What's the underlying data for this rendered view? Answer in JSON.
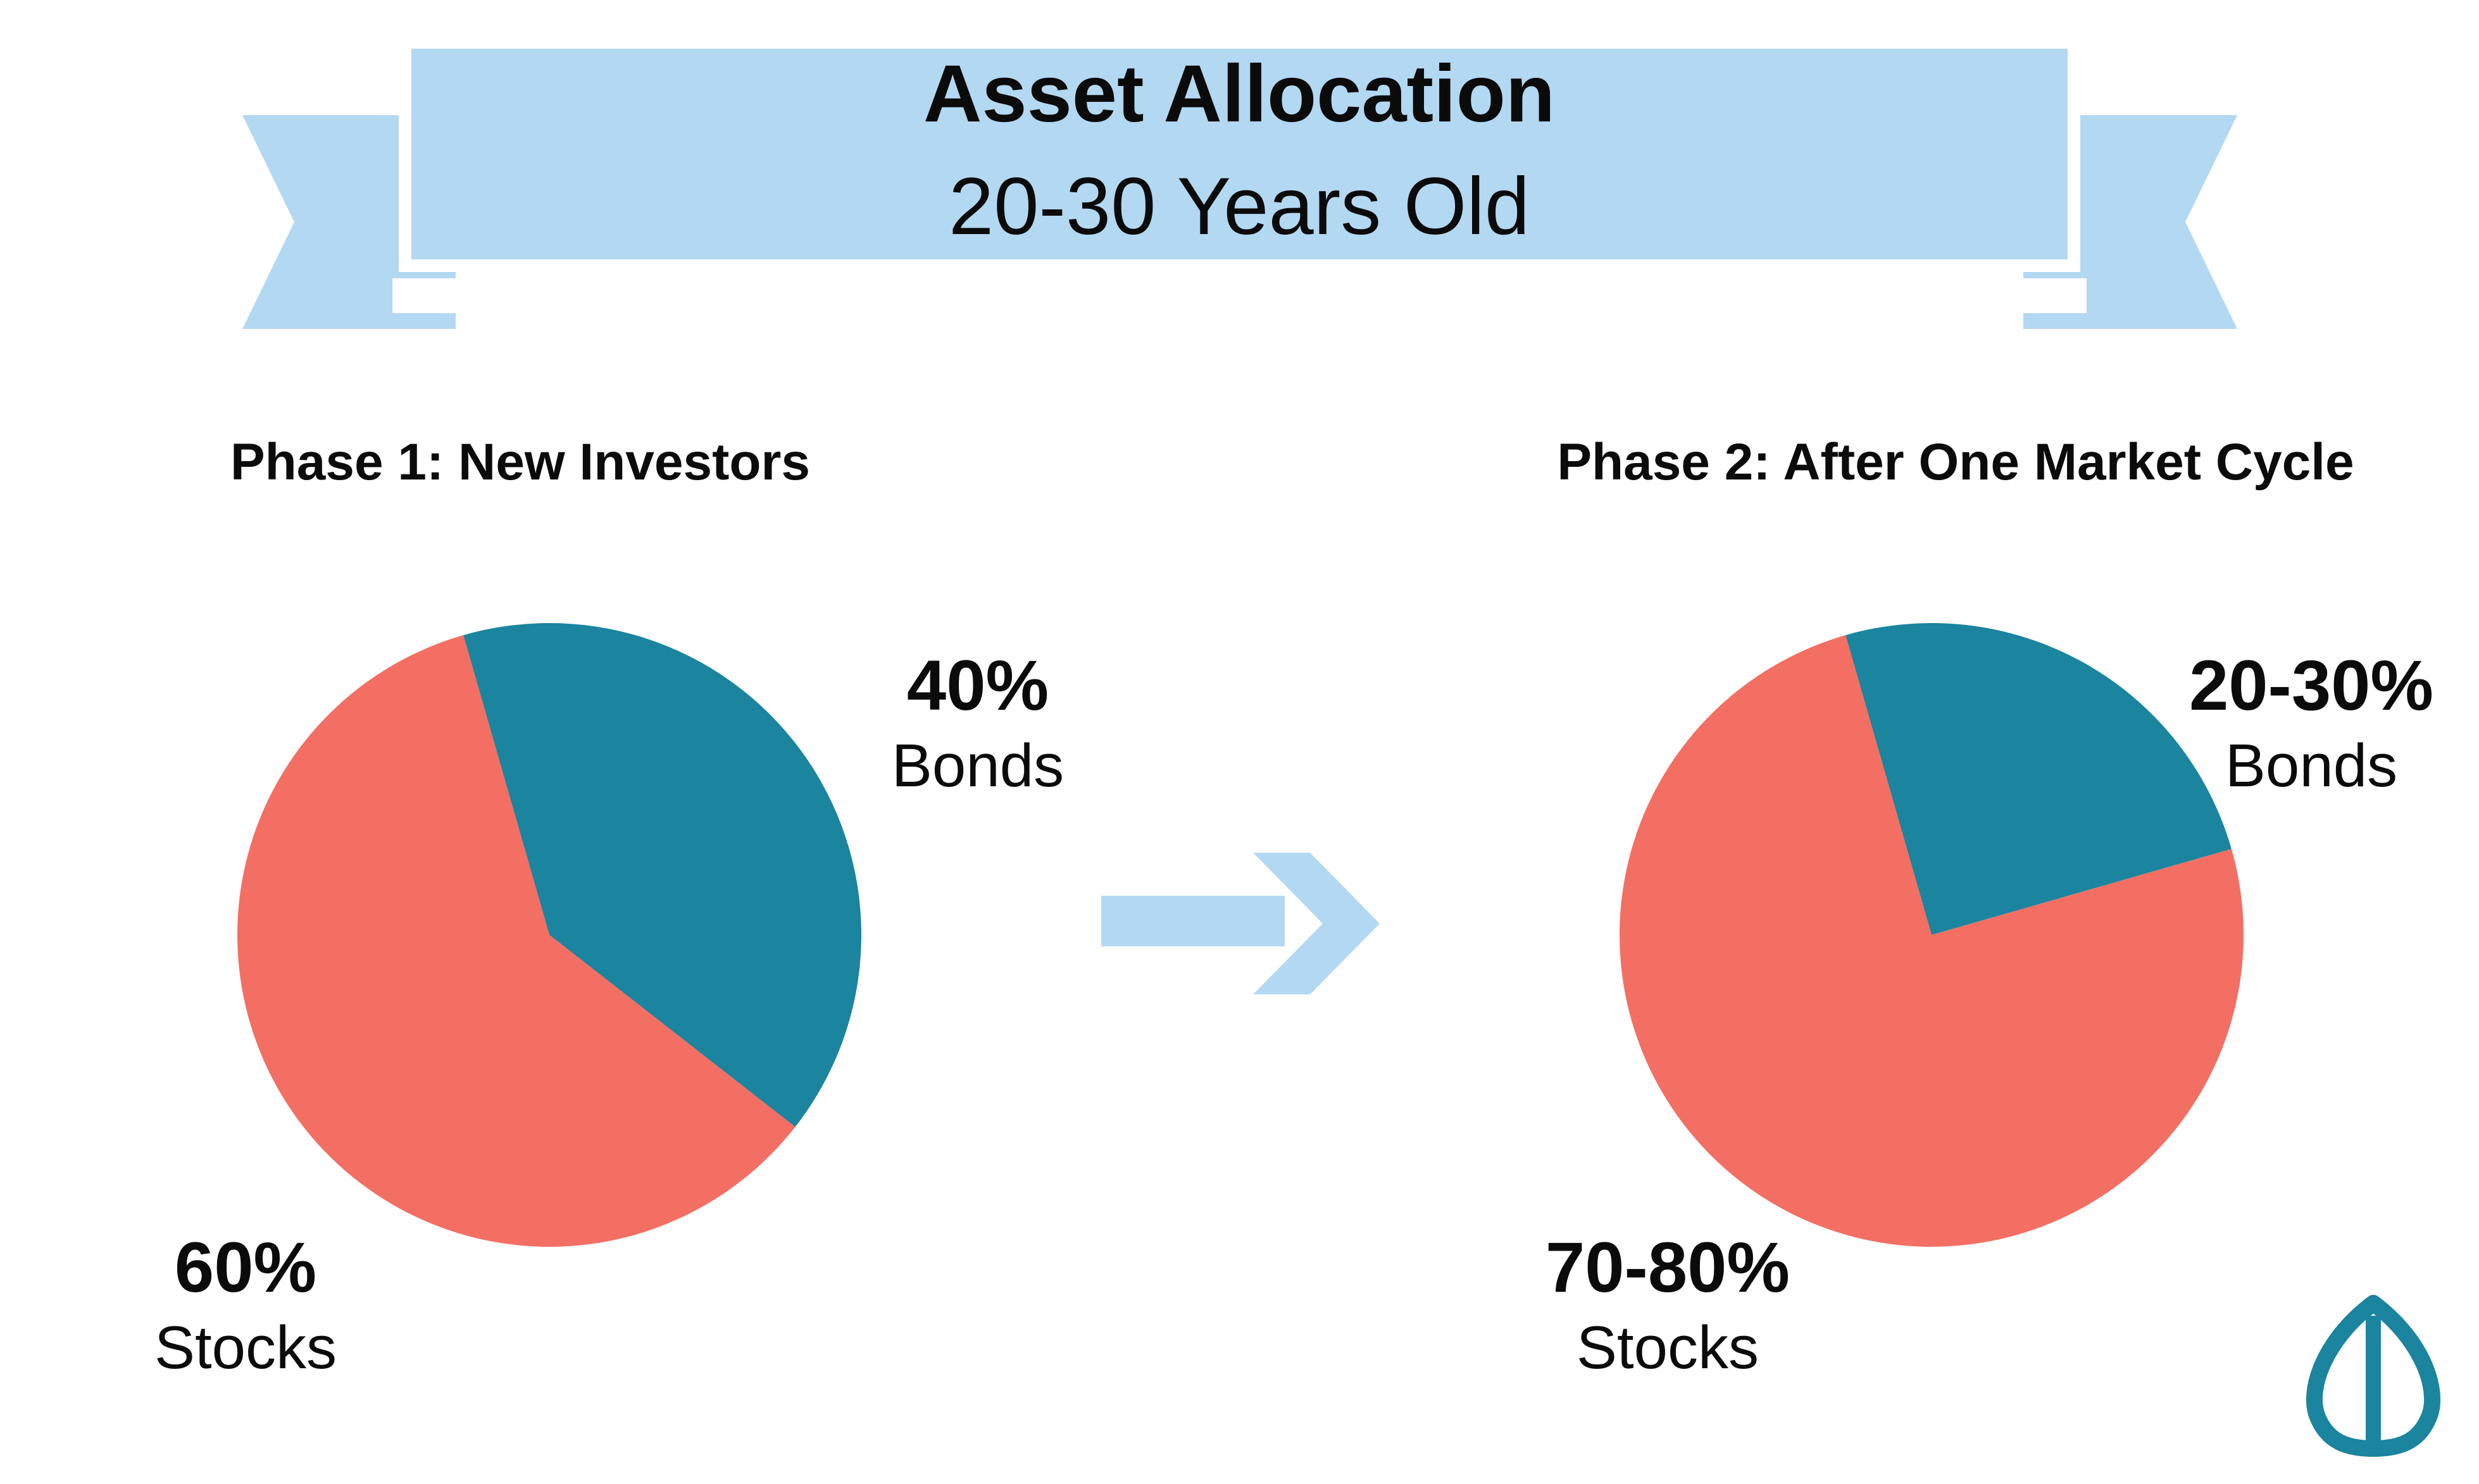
{
  "title": {
    "line1": "Asset Allocation",
    "line2": "20-30 Years Old"
  },
  "colors": {
    "banner": "#b3d8f2",
    "stocks": "#f36f63",
    "bonds": "#1b849f",
    "arrow": "#b3d8f2",
    "logo": "#1b849f",
    "text": "#0b0b0b"
  },
  "chart_data": [
    {
      "type": "pie",
      "title": "Phase 1: New Investors",
      "slices": [
        {
          "name": "Bonds",
          "value": 40,
          "label": "40%",
          "category": "Bonds"
        },
        {
          "name": "Stocks",
          "value": 60,
          "label": "60%",
          "category": "Stocks"
        }
      ]
    },
    {
      "type": "pie",
      "title": "Phase 2: After One Market Cycle",
      "slices": [
        {
          "name": "Bonds",
          "value": 25,
          "label": "20-30%",
          "category": "Bonds"
        },
        {
          "name": "Stocks",
          "value": 75,
          "label": "70-80%",
          "category": "Stocks"
        }
      ]
    }
  ],
  "icons": {
    "arrow": "right-arrow-icon",
    "logo": "seed-logo-icon"
  }
}
